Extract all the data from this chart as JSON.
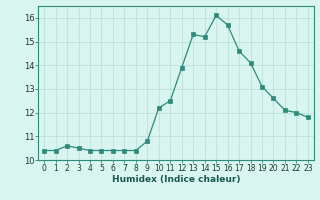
{
  "x": [
    0,
    1,
    2,
    3,
    4,
    5,
    6,
    7,
    8,
    9,
    10,
    11,
    12,
    13,
    14,
    15,
    16,
    17,
    18,
    19,
    20,
    21,
    22,
    23
  ],
  "y": [
    10.4,
    10.4,
    10.6,
    10.5,
    10.4,
    10.4,
    10.4,
    10.4,
    10.4,
    10.8,
    12.2,
    12.5,
    13.9,
    15.3,
    15.2,
    16.1,
    15.7,
    14.6,
    14.1,
    13.1,
    12.6,
    12.1,
    12.0,
    11.8
  ],
  "xlabel": "Humidex (Indice chaleur)",
  "ylim": [
    10.0,
    16.5
  ],
  "xlim": [
    -0.5,
    23.5
  ],
  "yticks": [
    10,
    11,
    12,
    13,
    14,
    15,
    16
  ],
  "xticks": [
    0,
    1,
    2,
    3,
    4,
    5,
    6,
    7,
    8,
    9,
    10,
    11,
    12,
    13,
    14,
    15,
    16,
    17,
    18,
    19,
    20,
    21,
    22,
    23
  ],
  "line_color": "#2e8b7a",
  "marker_color": "#2e8b7a",
  "bg_color": "#d8f5f0",
  "grid_color": "#b8ddd8",
  "tick_label_color": "#1a3a30",
  "xlabel_color": "#1a5a50",
  "spine_color": "#2e8b7a",
  "tick_fontsize": 5.5,
  "xlabel_fontsize": 6.5,
  "ytick_fontsize": 6.0
}
